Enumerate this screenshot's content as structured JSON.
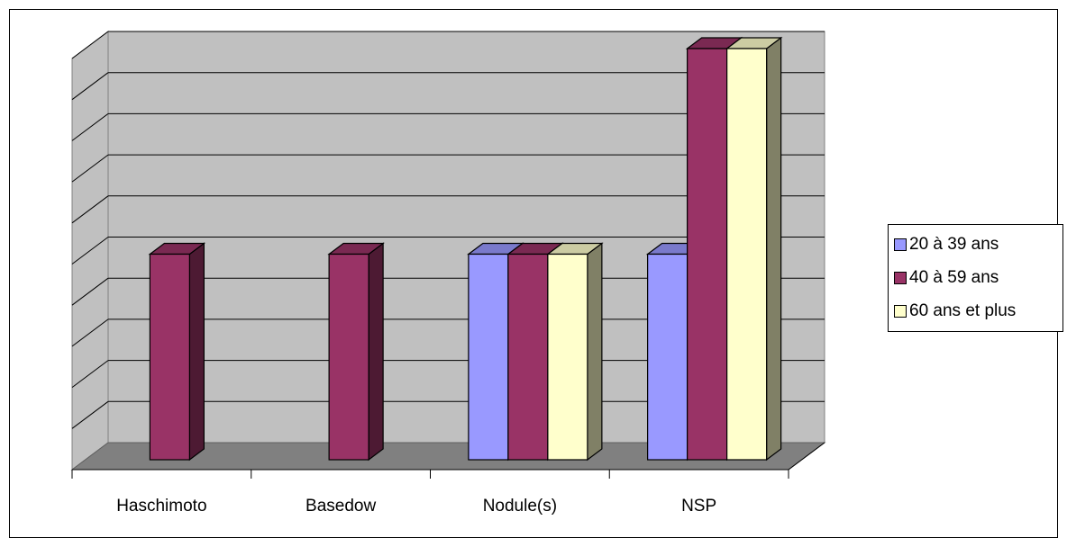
{
  "chart_data": {
    "type": "bar",
    "categories": [
      "Haschimoto",
      "Basedow",
      "Nodule(s)",
      "NSP"
    ],
    "series": [
      {
        "name": "20 à 39 ans",
        "values": [
          0,
          0,
          1,
          1
        ]
      },
      {
        "name": "40 à 59 ans",
        "values": [
          1,
          1,
          1,
          2
        ]
      },
      {
        "name": "60 ans et plus",
        "values": [
          0,
          0,
          1,
          2
        ]
      }
    ],
    "ylim": [
      0,
      2
    ],
    "grid": true,
    "legend": "right",
    "style": "3d",
    "colors": {
      "20 à 39 ans": "#9999ff",
      "40 à 59 ans": "#993366",
      "60 ans et plus": "#ffffcc",
      "wall": "#c0c0c0",
      "floor": "#808080"
    }
  },
  "legend": {
    "items": [
      {
        "label": "20 à 39 ans",
        "color": "#9999ff"
      },
      {
        "label": "40 à 59 ans",
        "color": "#993366"
      },
      {
        "label": "60 ans et plus",
        "color": "#ffffcc"
      }
    ]
  }
}
